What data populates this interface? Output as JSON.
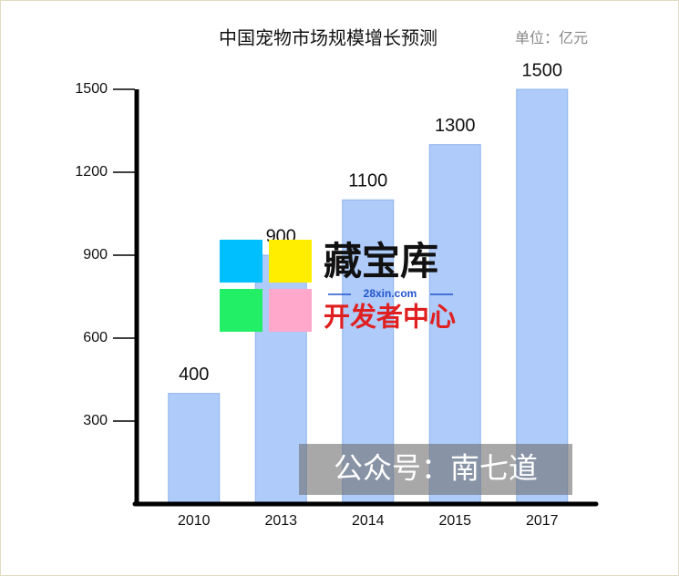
{
  "chart_data": {
    "type": "bar",
    "title": "中国宠物市场规模增长预测",
    "subtitle": "单位：亿元",
    "categories": [
      "2010",
      "2013",
      "2014",
      "2015",
      "2017"
    ],
    "values": [
      400,
      900,
      1100,
      1300,
      1500
    ],
    "color": "#aecbfa",
    "ylim": [
      0,
      1500
    ],
    "yticks": [
      300,
      600,
      900,
      1200,
      1500
    ],
    "annotations": [
      "藏宝库",
      "28xin.com",
      "开发者中心",
      "公众号：南七道"
    ]
  }
}
